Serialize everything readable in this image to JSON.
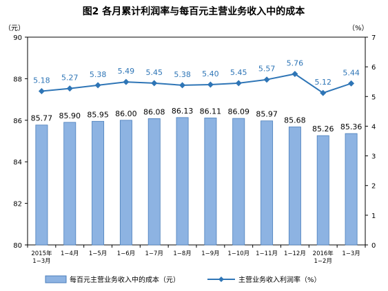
{
  "chart_data": {
    "type": "bar+line",
    "title": "图2 各月累计利润率与每百元主营业务收入中的成本",
    "left_unit": "（元）",
    "right_unit": "（%）",
    "categories": [
      [
        "2015年",
        "1−3月"
      ],
      [
        "1−4月"
      ],
      [
        "1−5月"
      ],
      [
        "1−6月"
      ],
      [
        "1−7月"
      ],
      [
        "1−8月"
      ],
      [
        "1−9月"
      ],
      [
        "1−10月"
      ],
      [
        "1−11月"
      ],
      [
        "1−12月"
      ],
      [
        "2016年",
        "1−2月"
      ],
      [
        "1−3月"
      ]
    ],
    "series": [
      {
        "name": "每百元主营业务收入中的成本（元）",
        "type": "bar",
        "axis": "left",
        "color": "#8db3e2",
        "border": "#4a7ebb",
        "values": [
          85.77,
          85.9,
          85.95,
          86.0,
          86.08,
          86.13,
          86.11,
          86.09,
          85.97,
          85.68,
          85.26,
          85.36
        ],
        "labels": [
          "85.77",
          "85.90",
          "85.95",
          "86.00",
          "86.08",
          "86.13",
          "86.11",
          "86.09",
          "85.97",
          "85.68",
          "85.26",
          "85.36"
        ]
      },
      {
        "name": "主营业务收入利润率（%）",
        "type": "line",
        "axis": "right",
        "color": "#2e75b6",
        "values": [
          5.18,
          5.27,
          5.38,
          5.49,
          5.45,
          5.38,
          5.4,
          5.45,
          5.57,
          5.76,
          5.12,
          5.44
        ],
        "labels": [
          "5.18",
          "5.27",
          "5.38",
          "5.49",
          "5.45",
          "5.38",
          "5.40",
          "5.45",
          "5.57",
          "5.76",
          "5.12",
          "5.44"
        ]
      }
    ],
    "y_left": {
      "min": 80,
      "max": 90,
      "ticks": [
        "80",
        "82",
        "84",
        "86",
        "88",
        "90"
      ]
    },
    "y_right": {
      "min": 0,
      "max": 7,
      "ticks": [
        "0",
        "1",
        "2",
        "3",
        "4",
        "5",
        "6",
        "7"
      ]
    },
    "grid": false,
    "legend_position": "bottom"
  }
}
